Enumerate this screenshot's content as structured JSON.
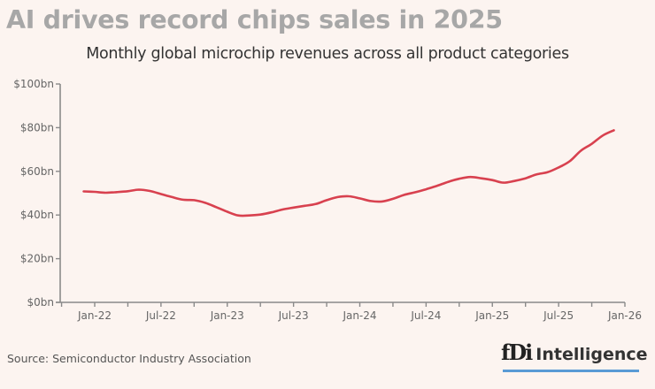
{
  "header": {
    "title": "AI drives record chips sales in 2025",
    "subtitle": "Monthly global microchip revenues across all product categories"
  },
  "footer": {
    "source": "Source: Semiconductor Industry Association",
    "logo_mark": "fDi",
    "logo_text": "Intelligence"
  },
  "colors": {
    "background": "#fcf4f0",
    "line": "#d8414f",
    "axis": "#8a8a8a",
    "logo_underline": "#5a9bd5"
  },
  "chart_data": {
    "type": "line",
    "title": "AI drives record chips sales in 2025",
    "subtitle": "Monthly global microchip revenues across all product categories",
    "xlabel": "",
    "ylabel": "",
    "ylim": [
      0,
      100
    ],
    "yticks": [
      0,
      20,
      40,
      60,
      80,
      100
    ],
    "ytick_labels": [
      "$0bn",
      "$20bn",
      "$40bn",
      "$60bn",
      "$80bn",
      "$100bn"
    ],
    "xtick_labels": [
      "Jan-22",
      "Jul-22",
      "Jan-23",
      "Jul-23",
      "Jan-24",
      "Jul-24",
      "Jan-25",
      "Jul-25",
      "Jan-26"
    ],
    "grid": false,
    "legend": "none",
    "x": [
      "Dec-21",
      "Jan-22",
      "Feb-22",
      "Mar-22",
      "Apr-22",
      "May-22",
      "Jun-22",
      "Jul-22",
      "Aug-22",
      "Sep-22",
      "Oct-22",
      "Nov-22",
      "Dec-22",
      "Jan-23",
      "Feb-23",
      "Mar-23",
      "Apr-23",
      "May-23",
      "Jun-23",
      "Jul-23",
      "Aug-23",
      "Sep-23",
      "Oct-23",
      "Nov-23",
      "Dec-23",
      "Jan-24",
      "Feb-24",
      "Mar-24",
      "Apr-24",
      "May-24",
      "Jun-24",
      "Jul-24",
      "Aug-24",
      "Sep-24",
      "Oct-24",
      "Nov-24",
      "Dec-24",
      "Jan-25",
      "Feb-25",
      "Mar-25",
      "Apr-25",
      "May-25",
      "Jun-25",
      "Jul-25",
      "Aug-25",
      "Sep-25",
      "Oct-25",
      "Nov-25",
      "Dec-25"
    ],
    "series": [
      {
        "name": "Monthly global microchip revenues ($bn)",
        "values": [
          50.8,
          50.6,
          50.2,
          50.5,
          50.9,
          51.6,
          51.0,
          49.6,
          48.2,
          47.0,
          46.8,
          45.6,
          43.6,
          41.5,
          39.8,
          39.8,
          40.2,
          41.2,
          42.5,
          43.4,
          44.2,
          45.0,
          46.8,
          48.2,
          48.6,
          47.6,
          46.4,
          46.2,
          47.4,
          49.2,
          50.4,
          51.8,
          53.4,
          55.2,
          56.6,
          57.4,
          56.8,
          56.0,
          54.8,
          55.6,
          56.8,
          58.6,
          59.6,
          61.8,
          64.6,
          69.4,
          72.6,
          76.4,
          78.8
        ]
      }
    ]
  }
}
